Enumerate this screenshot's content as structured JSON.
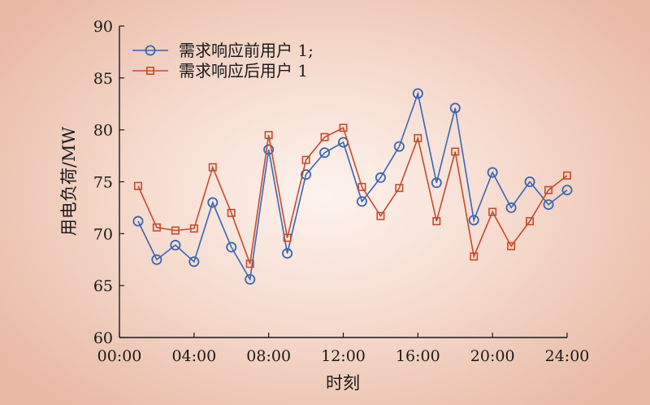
{
  "chart_data": {
    "type": "line",
    "xlabel": "时刻",
    "ylabel": "用电负荷/MW",
    "ylim": [
      60,
      90
    ],
    "yticks": [
      60,
      65,
      70,
      75,
      80,
      85,
      90
    ],
    "xlim": [
      0,
      24
    ],
    "xticks": [
      0,
      4,
      8,
      12,
      16,
      20,
      24
    ],
    "xtick_labels": [
      "00:00",
      "04:00",
      "08:00",
      "12:00",
      "16:00",
      "20:00",
      "24:00"
    ],
    "x": [
      1,
      2,
      3,
      4,
      5,
      6,
      7,
      8,
      9,
      10,
      11,
      12,
      13,
      14,
      15,
      16,
      17,
      18,
      19,
      20,
      21,
      22,
      23,
      24
    ],
    "legend_position": "top-left",
    "grid": false,
    "series": [
      {
        "name": "需求响应前用户 1;",
        "color": "#3a66b3",
        "marker": "circle",
        "values": [
          71.2,
          67.5,
          68.9,
          67.3,
          73.0,
          68.7,
          65.6,
          78.1,
          68.1,
          75.7,
          77.8,
          78.8,
          73.1,
          75.4,
          78.4,
          83.5,
          74.9,
          82.1,
          71.3,
          75.9,
          72.5,
          75.0,
          72.8,
          74.2
        ]
      },
      {
        "name": "需求响应后用户 1",
        "color": "#c64a2e",
        "marker": "square",
        "values": [
          74.6,
          70.6,
          70.3,
          70.5,
          76.4,
          72.0,
          67.1,
          79.5,
          69.6,
          77.1,
          79.3,
          80.2,
          74.5,
          71.7,
          74.4,
          79.2,
          71.2,
          77.9,
          67.8,
          72.1,
          68.8,
          71.2,
          74.2,
          75.6
        ]
      }
    ]
  }
}
